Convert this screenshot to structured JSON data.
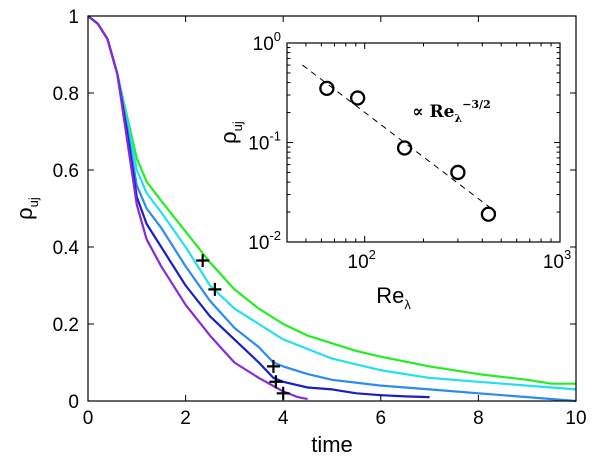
{
  "chart_data": [
    {
      "type": "line",
      "xlabel": "time",
      "ylabel_base": "ρ",
      "ylabel_sub": "uj",
      "xlim": [
        0,
        10
      ],
      "ylim": [
        0,
        1
      ],
      "xticks": [
        0,
        2,
        4,
        6,
        8,
        10
      ],
      "yticks": [
        0,
        0.2,
        0.4,
        0.6,
        0.8,
        1
      ],
      "xtick_labels": [
        "0",
        "2",
        "4",
        "6",
        "8",
        "10"
      ],
      "ytick_labels": [
        "0",
        "0.2",
        "0.4",
        "0.6",
        "0.8",
        "1"
      ],
      "grid": false,
      "series": [
        {
          "color": "#22ee22",
          "x": [
            0,
            0.2,
            0.4,
            0.6,
            0.8,
            1.0,
            1.2,
            1.5,
            2.0,
            2.5,
            3.0,
            3.5,
            4.0,
            4.5,
            5.0,
            5.5,
            6.0,
            7.0,
            8.0,
            9.0,
            9.5,
            10.0
          ],
          "y": [
            1.0,
            0.98,
            0.94,
            0.85,
            0.74,
            0.63,
            0.57,
            0.52,
            0.44,
            0.36,
            0.29,
            0.24,
            0.2,
            0.17,
            0.15,
            0.13,
            0.115,
            0.09,
            0.07,
            0.055,
            0.045,
            0.045
          ]
        },
        {
          "color": "#22e0f0",
          "x": [
            0,
            0.2,
            0.4,
            0.6,
            0.8,
            1.0,
            1.2,
            1.5,
            2.0,
            2.5,
            3.0,
            3.5,
            4.0,
            4.5,
            5.0,
            5.5,
            6.0,
            7.0,
            8.0,
            9.0,
            10.0
          ],
          "y": [
            1.0,
            0.98,
            0.94,
            0.85,
            0.73,
            0.6,
            0.54,
            0.49,
            0.4,
            0.3,
            0.24,
            0.2,
            0.16,
            0.135,
            0.11,
            0.095,
            0.08,
            0.06,
            0.05,
            0.04,
            0.03
          ]
        },
        {
          "color": "#2a8cf0",
          "x": [
            0,
            0.2,
            0.4,
            0.6,
            0.8,
            1.0,
            1.2,
            1.5,
            2.0,
            2.5,
            3.0,
            3.5,
            3.8,
            4.0,
            4.5,
            5.0,
            6.0,
            7.0,
            8.0,
            9.0,
            10.0
          ],
          "y": [
            1.0,
            0.98,
            0.94,
            0.85,
            0.71,
            0.56,
            0.5,
            0.45,
            0.35,
            0.26,
            0.19,
            0.14,
            0.1,
            0.09,
            0.07,
            0.055,
            0.04,
            0.03,
            0.02,
            0.01,
            0.0
          ]
        },
        {
          "color": "#1a1ec8",
          "x": [
            0,
            0.2,
            0.4,
            0.6,
            0.8,
            1.0,
            1.2,
            1.5,
            2.0,
            2.5,
            3.0,
            3.5,
            3.8,
            4.0,
            4.5,
            5.0,
            5.5,
            6.0,
            6.5,
            7.0
          ],
          "y": [
            1.0,
            0.98,
            0.94,
            0.85,
            0.7,
            0.53,
            0.46,
            0.4,
            0.3,
            0.22,
            0.16,
            0.1,
            0.06,
            0.05,
            0.035,
            0.03,
            0.02,
            0.015,
            0.012,
            0.01
          ]
        },
        {
          "color": "#8a28d8",
          "x": [
            0,
            0.2,
            0.4,
            0.6,
            0.8,
            1.0,
            1.2,
            1.5,
            2.0,
            2.5,
            3.0,
            3.5,
            4.0,
            4.3,
            4.5
          ],
          "y": [
            1.0,
            0.98,
            0.94,
            0.85,
            0.68,
            0.51,
            0.42,
            0.35,
            0.25,
            0.17,
            0.1,
            0.06,
            0.025,
            0.01,
            0.005
          ]
        }
      ],
      "markers": {
        "symbol": "+",
        "color": "#000000",
        "x": [
          2.35,
          2.6,
          3.8,
          3.85,
          4.0
        ],
        "y": [
          0.365,
          0.29,
          0.09,
          0.05,
          0.02
        ]
      }
    },
    {
      "type": "scatter",
      "xscale": "log",
      "yscale": "log",
      "xlabel_base": "Re",
      "xlabel_sub": "λ",
      "ylabel_base": "ρ",
      "ylabel_sub": "uj",
      "xlim": [
        40,
        1000
      ],
      "ylim": [
        0.01,
        1
      ],
      "xtick_labels": [
        {
          "value": 100,
          "base": "10",
          "exp": "2"
        },
        {
          "value": 1000,
          "base": "10",
          "exp": "3"
        }
      ],
      "ytick_labels": [
        {
          "value": 0.01,
          "base": "10",
          "exp": "-2"
        },
        {
          "value": 0.1,
          "base": "10",
          "exp": "-1"
        },
        {
          "value": 1,
          "base": "10",
          "exp": "0"
        }
      ],
      "points": {
        "x": [
          64,
          92,
          160,
          300,
          430
        ],
        "y": [
          0.35,
          0.28,
          0.088,
          0.05,
          0.019
        ]
      },
      "fit_line": {
        "style": "dashed",
        "x": [
          48,
          470
        ],
        "y": [
          0.6,
          0.02
        ]
      },
      "annotation": {
        "prefix": "∝",
        "base": "Re",
        "sub": "λ",
        "sup": "−3/2",
        "x": 175,
        "y": 0.18
      }
    }
  ]
}
